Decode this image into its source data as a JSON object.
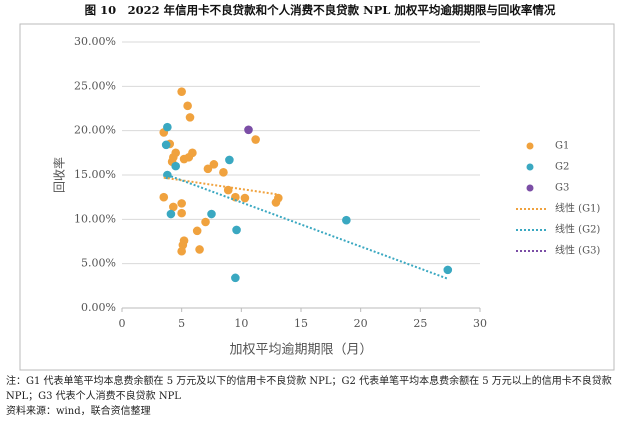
{
  "chart_data": {
    "type": "scatter",
    "title": "图 10　2022 年信用卡不良贷款和个人消费不良贷款 NPL 加权平均逾期期限与回收率情况",
    "x_label": "加权平均逾期期限（月）",
    "y_label": "回收率",
    "xlim": [
      0,
      30
    ],
    "xticks": [
      0,
      5,
      10,
      15,
      20,
      25,
      30
    ],
    "ylim": [
      0,
      30
    ],
    "yticks": [
      {
        "value": 0,
        "label": "0.00%"
      },
      {
        "value": 5,
        "label": "5.00%"
      },
      {
        "value": 10,
        "label": "10.00%"
      },
      {
        "value": 15,
        "label": "15.00%"
      },
      {
        "value": 20,
        "label": "20.00%"
      },
      {
        "value": 25,
        "label": "25.00%"
      },
      {
        "value": 30,
        "label": "30.00%"
      }
    ],
    "series": [
      {
        "name": "G1",
        "color": "#f0a23e",
        "x": [
          5,
          5.5,
          5.7,
          3.5,
          11.2,
          4,
          4.5,
          4.3,
          4.2,
          5.9,
          5.2,
          5.6,
          7.7,
          7.2,
          8.5,
          8.9,
          10.3,
          9.5,
          13.1,
          12.9,
          3.5,
          5,
          4.3,
          5,
          7,
          6.3,
          5.2,
          5.1,
          5,
          6.5
        ],
        "values": [
          24.4,
          22.8,
          21.5,
          19.8,
          19,
          18.5,
          17.5,
          17,
          16.5,
          17.5,
          16.8,
          17,
          16.2,
          15.7,
          15.3,
          13.3,
          12.4,
          12.5,
          12.4,
          11.9,
          12.5,
          11.8,
          11.4,
          10.7,
          9.7,
          8.7,
          7.6,
          7.1,
          6.4,
          6.6
        ]
      },
      {
        "name": "G2",
        "color": "#3aa8c1",
        "x": [
          3.8,
          3.7,
          4.5,
          3.8,
          9,
          4.1,
          7.5,
          9.6,
          18.8,
          27.3,
          9.5
        ],
        "values": [
          20.4,
          18.4,
          16,
          15,
          16.7,
          10.6,
          10.6,
          8.8,
          9.9,
          4.3,
          3.4
        ]
      },
      {
        "name": "G3",
        "color": "#7b4ea6",
        "x": [
          10.6
        ],
        "values": [
          20.1
        ]
      }
    ],
    "trendlines": [
      {
        "name": "线性 (G1)",
        "color": "#f0a23e",
        "x": [
          3.5,
          13.1
        ],
        "values": [
          14.7,
          12.8
        ]
      },
      {
        "name": "线性 (G2)",
        "color": "#3aa8c1",
        "x": [
          3.8,
          27.3
        ],
        "values": [
          15,
          3.3
        ]
      },
      {
        "name": "线性 (G3)",
        "color": "#7b4ea6",
        "x": [],
        "values": []
      }
    ],
    "notes": [
      "注：G1 代表单笔平均本息费余额在 5 万元及以下的信用卡不良贷款 NPL；G2 代表单笔平均本息费余额在 5 万元以上的信用卡不良贷款 NPL；G3 代表个人消费不良贷款 NPL",
      "资料来源：wind，联合资信整理"
    ]
  }
}
